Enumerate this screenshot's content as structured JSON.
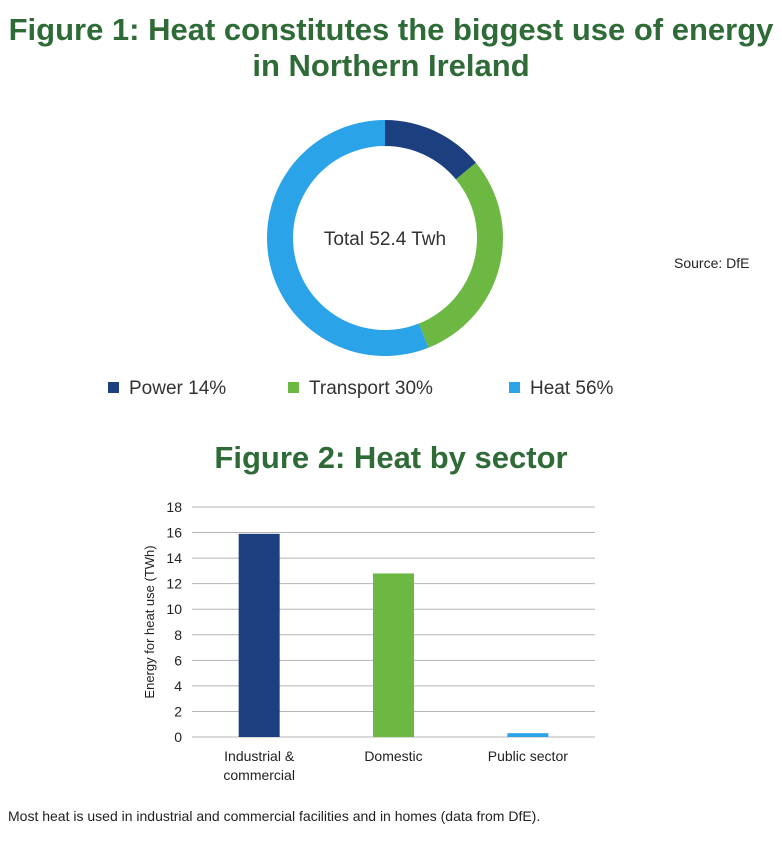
{
  "figure1": {
    "title": "Figure 1: Heat constitutes the biggest use of energy in Northern Ireland",
    "center_label": "Total 52.4 Twh",
    "source": "Source: DfE"
  },
  "figure2": {
    "title": "Figure 2: Heat by sector"
  },
  "caption": "Most heat is used in industrial and commercial facilities and in homes (data from DfE).",
  "chart_data": [
    {
      "type": "pie",
      "variant": "donut",
      "categories": [
        "Power",
        "Transport",
        "Heat"
      ],
      "legend_labels": [
        "Power 14%",
        "Transport 30%",
        "Heat 56%"
      ],
      "values": [
        14,
        30,
        56
      ],
      "unit": "%",
      "colors": [
        "#1b3f7f",
        "#6cb843",
        "#2aa3e8"
      ],
      "legend_position": "bottom"
    },
    {
      "type": "bar",
      "categories": [
        [
          "Industrial &",
          "commercial"
        ],
        [
          "Domestic"
        ],
        [
          "Public sector"
        ]
      ],
      "values": [
        15.9,
        12.8,
        0.3
      ],
      "colors": [
        "#1b3f7f",
        "#6cb843",
        "#2aa3e8"
      ],
      "ylabel": "Energy for heat use (TWh)",
      "ylim": [
        0,
        18
      ],
      "yticks": [
        0,
        2,
        4,
        6,
        8,
        10,
        12,
        14,
        16,
        18
      ],
      "grid": true
    }
  ]
}
